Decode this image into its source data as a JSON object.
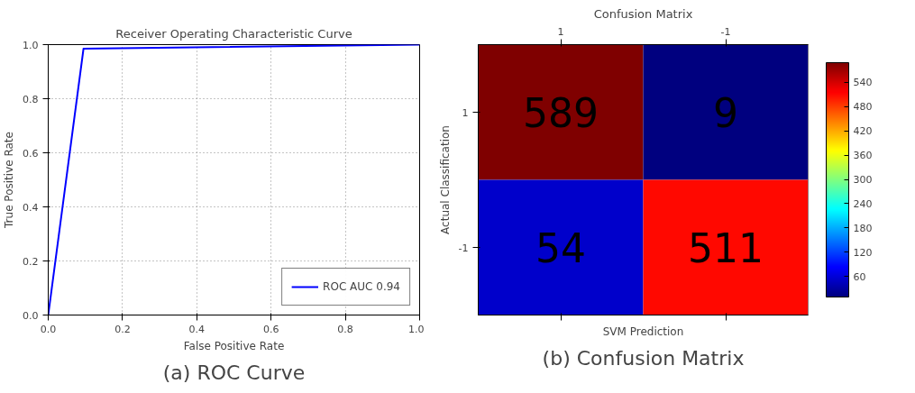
{
  "chart_data": [
    {
      "type": "line",
      "title": "Receiver Operating Characteristic Curve",
      "xlabel": "False Positive Rate",
      "ylabel": "True Positive Rate",
      "x": [
        0,
        0.095,
        1
      ],
      "series": [
        {
          "name": "ROC AUC 0.94",
          "color": "#0000ff",
          "values": [
            0,
            0.985,
            1
          ]
        }
      ],
      "xlim": [
        0,
        1
      ],
      "ylim": [
        0,
        1
      ],
      "xticks": [
        {
          "value": 0,
          "label": "0.0"
        },
        0.2,
        0.4,
        0.6,
        0.8,
        {
          "value": 1,
          "label": "1.0"
        }
      ],
      "yticks": [
        {
          "value": 0,
          "label": "0.0"
        },
        0.2,
        0.4,
        0.6,
        0.8,
        {
          "value": 1,
          "label": "1.0"
        }
      ],
      "grid": true,
      "legend": "bottom right",
      "line_style": "solid",
      "marker": "none",
      "annotations": [
        "(a) ROC Curve"
      ]
    },
    {
      "type": "heatmap",
      "title": "Confusion Matrix",
      "xlabel": "SVM Prediction",
      "ylabel": "Actual Classification",
      "categories": [
        "1",
        "-1"
      ],
      "y_categories": [
        "1",
        "-1"
      ],
      "cells": [
        [
          589,
          9
        ],
        [
          54,
          511
        ]
      ],
      "clim": [
        9,
        589
      ],
      "cticks": [
        60,
        120,
        180,
        240,
        300,
        360,
        420,
        480,
        540
      ],
      "data_labels": true,
      "annotations": [
        "(b) Confusion Matrix"
      ]
    }
  ]
}
